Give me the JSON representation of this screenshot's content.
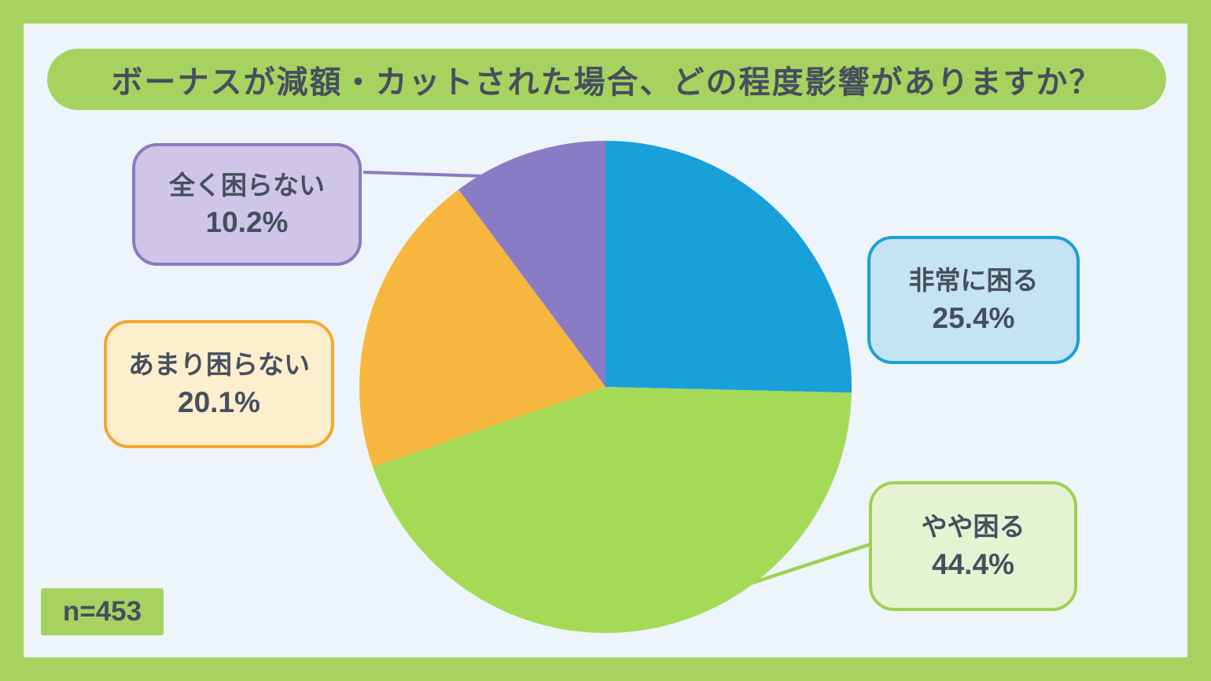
{
  "title": "ボーナスが減額・カットされた場合、どの程度影響がありますか？",
  "sample_size_label": "n=453",
  "colors": {
    "frame_green": "#a6d35f",
    "panel_bg": "#edf4fa",
    "text_dark": "#454f5e"
  },
  "chart_data": {
    "type": "pie",
    "title": "ボーナスが減額・カットされた場合、どの程度影響がありますか？",
    "sample_size": 453,
    "start_angle_deg": 0,
    "direction": "clockwise",
    "legend_position": "callout-boxes",
    "slices": [
      {
        "label": "非常に困る",
        "value": 25.4,
        "display": "25.4%",
        "color": "#18a0d8",
        "callout_fill": "#c5e4f3",
        "callout_border": "#1d9fd8"
      },
      {
        "label": "やや困る",
        "value": 44.4,
        "display": "44.4%",
        "color": "#a5da56",
        "callout_fill": "#e6f3d2",
        "callout_border": "#9fd150"
      },
      {
        "label": "あまり困らない",
        "value": 20.1,
        "display": "20.1%",
        "color": "#f7b73e",
        "callout_fill": "#fdeecd",
        "callout_border": "#f4a832"
      },
      {
        "label": "全く困らない",
        "value": 10.2,
        "display": "10.2%",
        "color": "#8a7cc4",
        "callout_fill": "#cfc5e9",
        "callout_border": "#8b7abf"
      }
    ]
  }
}
